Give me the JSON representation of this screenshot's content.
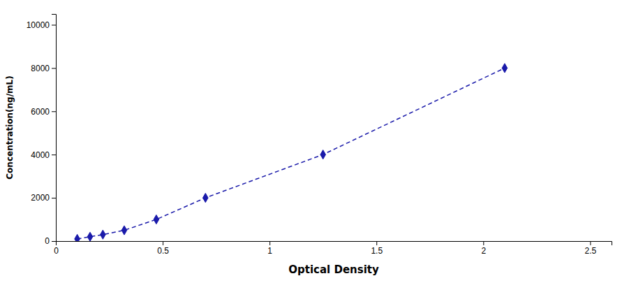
{
  "chart_data": {
    "type": "line",
    "xlabel": "Optical Density",
    "ylabel": "Concentration(ng/mL)",
    "x": [
      0.1,
      0.16,
      0.22,
      0.32,
      0.47,
      0.7,
      1.25,
      2.1
    ],
    "values": [
      100,
      200,
      300,
      500,
      1000,
      2000,
      4000,
      8000
    ],
    "color": "#1a1aaa",
    "marker": "diamond",
    "line_style": "dashed",
    "xlim": [
      0,
      2.6
    ],
    "ylim": [
      0,
      10500
    ],
    "xticks": [
      0,
      0.5,
      1,
      1.5,
      2,
      2.5
    ],
    "yticks": [
      0,
      2000,
      4000,
      6000,
      8000,
      10000
    ]
  }
}
